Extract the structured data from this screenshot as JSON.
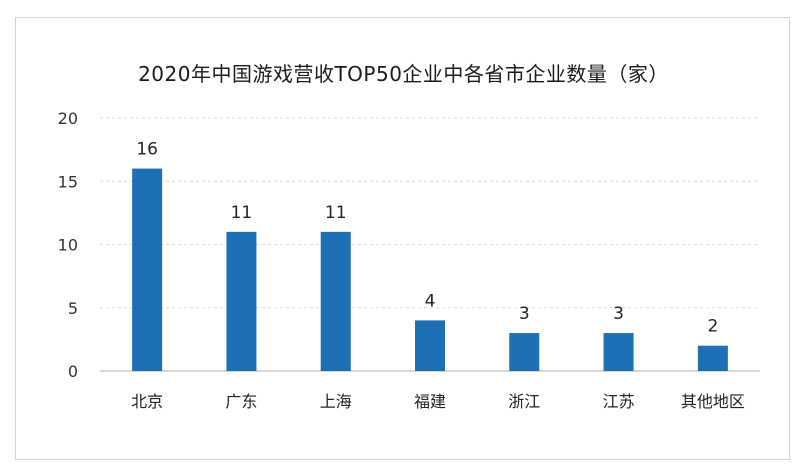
{
  "chart_data": {
    "type": "bar",
    "title": "2020年中国游戏营收TOP50企业中各省市企业数量（家）",
    "categories": [
      "北京",
      "广东",
      "上海",
      "福建",
      "浙江",
      "江苏",
      "其他地区"
    ],
    "values": [
      16,
      11,
      11,
      4,
      3,
      3,
      2
    ],
    "yticks": [
      0,
      5,
      10,
      15,
      20
    ],
    "ylim": [
      0,
      20
    ],
    "xlabel": "",
    "ylabel": "",
    "grid": true,
    "legend": "none",
    "bar_color": "#1f6fb5",
    "grid_color": "#d9d9d9",
    "axis_color": "#bfbfbf"
  }
}
